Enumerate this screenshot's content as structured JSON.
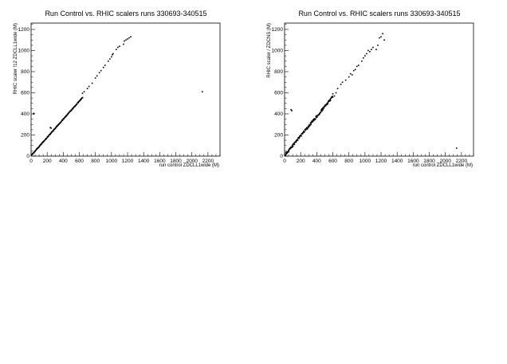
{
  "chart_data": [
    {
      "type": "scatter",
      "title": "Run Control vs. RHIC scalers runs 330693-340515",
      "xlabel": "run control ZDCLL1wide (M)",
      "ylabel": "RHIC scaler !12 ZDCLL1wide (M)",
      "xlim": [
        0,
        2350
      ],
      "ylim": [
        0,
        1260
      ],
      "xticks": [
        0,
        200,
        400,
        600,
        800,
        1000,
        1200,
        1400,
        1600,
        1800,
        2000,
        2200
      ],
      "yticks": [
        0,
        200,
        400,
        600,
        800,
        1000,
        1200
      ],
      "grid": false,
      "main_band": {
        "x_start": 5,
        "x_end": 640,
        "slope": 0.86,
        "intercept": 5,
        "spread": 6,
        "count": 160
      },
      "points": [
        [
          30,
          400
        ],
        [
          35,
          405
        ],
        [
          240,
          270
        ],
        [
          250,
          265
        ],
        [
          640,
          595
        ],
        [
          660,
          610
        ],
        [
          700,
          640
        ],
        [
          720,
          660
        ],
        [
          760,
          690
        ],
        [
          800,
          740
        ],
        [
          820,
          760
        ],
        [
          850,
          790
        ],
        [
          870,
          810
        ],
        [
          900,
          840
        ],
        [
          920,
          860
        ],
        [
          960,
          900
        ],
        [
          980,
          920
        ],
        [
          1000,
          940
        ],
        [
          1010,
          960
        ],
        [
          1020,
          970
        ],
        [
          1060,
          1010
        ],
        [
          1080,
          1030
        ],
        [
          1100,
          1040
        ],
        [
          1150,
          1060
        ],
        [
          1160,
          1090
        ],
        [
          1180,
          1100
        ],
        [
          1200,
          1110
        ],
        [
          1220,
          1120
        ],
        [
          1240,
          1130
        ],
        [
          2130,
          610
        ]
      ]
    },
    {
      "type": "scatter",
      "title": "Run Control vs. RHIC scalers runs 330693-340515",
      "xlabel": "run control ZDCLL1wide (M)",
      "ylabel": "RHIC scaler / ZDCNS (M)",
      "xlim": [
        0,
        2350
      ],
      "ylim": [
        0,
        1260
      ],
      "xticks": [
        0,
        200,
        400,
        600,
        800,
        1000,
        1200,
        1400,
        1600,
        1800,
        2000,
        2200
      ],
      "yticks": [
        0,
        200,
        400,
        600,
        800,
        1000,
        1200
      ],
      "grid": false,
      "main_band": {
        "x_start": 5,
        "x_end": 600,
        "slope": 0.93,
        "intercept": 5,
        "spread": 22,
        "count": 150
      },
      "points": [
        [
          80,
          440
        ],
        [
          90,
          430
        ],
        [
          600,
          590
        ],
        [
          620,
          570
        ],
        [
          640,
          600
        ],
        [
          660,
          640
        ],
        [
          700,
          680
        ],
        [
          720,
          700
        ],
        [
          760,
          720
        ],
        [
          800,
          750
        ],
        [
          820,
          780
        ],
        [
          840,
          770
        ],
        [
          860,
          810
        ],
        [
          880,
          820
        ],
        [
          900,
          850
        ],
        [
          920,
          860
        ],
        [
          960,
          900
        ],
        [
          980,
          930
        ],
        [
          1000,
          950
        ],
        [
          1020,
          970
        ],
        [
          1040,
          1000
        ],
        [
          1060,
          990
        ],
        [
          1080,
          1010
        ],
        [
          1100,
          1030
        ],
        [
          1140,
          1010
        ],
        [
          1160,
          1050
        ],
        [
          1180,
          1120
        ],
        [
          1200,
          1130
        ],
        [
          1220,
          1160
        ],
        [
          1240,
          1100
        ],
        [
          2140,
          75
        ]
      ]
    }
  ]
}
